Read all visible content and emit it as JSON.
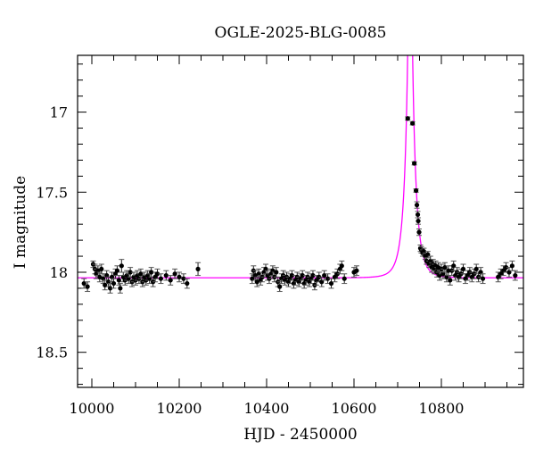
{
  "chart_data": {
    "type": "scatter",
    "title": "OGLE-2025-BLG-0085",
    "xlabel": "HJD - 2450000",
    "ylabel": "I magnitude",
    "xlim": [
      9967,
      10988
    ],
    "ylim": [
      18.72,
      16.647
    ],
    "y_inverted": true,
    "x_ticks": [
      10000,
      10200,
      10400,
      10600,
      10800
    ],
    "x_tick_labels": [
      "10000",
      "10200",
      "10400",
      "10600",
      "10800"
    ],
    "y_ticks": [
      17,
      17.5,
      18,
      18.5
    ],
    "y_tick_labels": [
      "17",
      "17.5",
      "18",
      "18.5"
    ],
    "grid": false,
    "colors": {
      "points": "#000000",
      "errorbars": "#555555",
      "model": "#ff00ff"
    },
    "series": [
      {
        "marker": "filled-circle-with-errorbars",
        "points": [
          [
            9982,
            18.07,
            0.03
          ],
          [
            9990,
            18.09,
            0.03
          ],
          [
            10003,
            17.95,
            0.02
          ],
          [
            10007,
            17.98,
            0.03
          ],
          [
            10010,
            18.01,
            0.03
          ],
          [
            10014,
            17.99,
            0.03
          ],
          [
            10018,
            18.03,
            0.03
          ],
          [
            10022,
            17.98,
            0.03
          ],
          [
            10026,
            18.04,
            0.03
          ],
          [
            10030,
            18.08,
            0.03
          ],
          [
            10034,
            18.02,
            0.03
          ],
          [
            10038,
            18.06,
            0.03
          ],
          [
            10042,
            18.1,
            0.03
          ],
          [
            10046,
            18.03,
            0.03
          ],
          [
            10050,
            18.07,
            0.03
          ],
          [
            10054,
            18.01,
            0.03
          ],
          [
            10058,
            17.99,
            0.03
          ],
          [
            10062,
            18.05,
            0.03
          ],
          [
            10065,
            18.1,
            0.03
          ],
          [
            10068,
            17.96,
            0.04
          ],
          [
            10072,
            18.03,
            0.03
          ],
          [
            10076,
            18.05,
            0.03
          ],
          [
            10080,
            18.02,
            0.03
          ],
          [
            10084,
            18.04,
            0.03
          ],
          [
            10088,
            18.0,
            0.03
          ],
          [
            10092,
            18.06,
            0.03
          ],
          [
            10096,
            18.03,
            0.03
          ],
          [
            10100,
            18.05,
            0.03
          ],
          [
            10104,
            18.02,
            0.03
          ],
          [
            10108,
            18.04,
            0.03
          ],
          [
            10112,
            18.01,
            0.03
          ],
          [
            10116,
            18.06,
            0.03
          ],
          [
            10120,
            18.03,
            0.03
          ],
          [
            10124,
            18.05,
            0.03
          ],
          [
            10128,
            18.02,
            0.03
          ],
          [
            10132,
            18.04,
            0.03
          ],
          [
            10136,
            18.0,
            0.03
          ],
          [
            10140,
            18.06,
            0.03
          ],
          [
            10145,
            18.03,
            0.03
          ],
          [
            10150,
            18.01,
            0.03
          ],
          [
            10158,
            18.04,
            0.03
          ],
          [
            10170,
            18.02,
            0.03
          ],
          [
            10180,
            18.05,
            0.03
          ],
          [
            10190,
            18.01,
            0.03
          ],
          [
            10200,
            18.03,
            0.03
          ],
          [
            10210,
            18.04,
            0.03
          ],
          [
            10218,
            18.07,
            0.03
          ],
          [
            10243,
            17.98,
            0.04
          ],
          [
            10367,
            18.04,
            0.03
          ],
          [
            10370,
            17.99,
            0.03
          ],
          [
            10374,
            18.02,
            0.03
          ],
          [
            10378,
            18.06,
            0.03
          ],
          [
            10382,
            18.01,
            0.03
          ],
          [
            10386,
            18.05,
            0.03
          ],
          [
            10390,
            18.03,
            0.03
          ],
          [
            10394,
            18.0,
            0.03
          ],
          [
            10398,
            17.98,
            0.03
          ],
          [
            10402,
            18.02,
            0.03
          ],
          [
            10406,
            18.04,
            0.03
          ],
          [
            10410,
            18.01,
            0.03
          ],
          [
            10414,
            17.99,
            0.03
          ],
          [
            10418,
            18.03,
            0.03
          ],
          [
            10422,
            18.0,
            0.03
          ],
          [
            10426,
            18.06,
            0.03
          ],
          [
            10430,
            18.09,
            0.03
          ],
          [
            10434,
            18.04,
            0.03
          ],
          [
            10438,
            18.02,
            0.03
          ],
          [
            10442,
            18.05,
            0.03
          ],
          [
            10446,
            18.03,
            0.03
          ],
          [
            10450,
            18.06,
            0.03
          ],
          [
            10454,
            18.04,
            0.03
          ],
          [
            10458,
            18.02,
            0.03
          ],
          [
            10462,
            18.07,
            0.03
          ],
          [
            10466,
            18.05,
            0.03
          ],
          [
            10470,
            18.03,
            0.03
          ],
          [
            10474,
            18.06,
            0.03
          ],
          [
            10478,
            18.04,
            0.03
          ],
          [
            10482,
            18.02,
            0.03
          ],
          [
            10486,
            18.07,
            0.03
          ],
          [
            10490,
            18.05,
            0.03
          ],
          [
            10494,
            18.03,
            0.03
          ],
          [
            10498,
            18.06,
            0.03
          ],
          [
            10502,
            18.04,
            0.03
          ],
          [
            10506,
            18.02,
            0.03
          ],
          [
            10510,
            18.08,
            0.03
          ],
          [
            10514,
            18.05,
            0.03
          ],
          [
            10520,
            18.03,
            0.03
          ],
          [
            10526,
            18.06,
            0.03
          ],
          [
            10532,
            18.02,
            0.03
          ],
          [
            10540,
            18.04,
            0.03
          ],
          [
            10548,
            18.07,
            0.03
          ],
          [
            10556,
            18.03,
            0.03
          ],
          [
            10562,
            18.01,
            0.03
          ],
          [
            10568,
            17.98,
            0.03
          ],
          [
            10572,
            17.96,
            0.03
          ],
          [
            10578,
            18.04,
            0.03
          ],
          [
            10600,
            18.0,
            0.03
          ],
          [
            10606,
            17.99,
            0.03
          ],
          [
            10723,
            17.04,
            0.01
          ],
          [
            10734,
            17.07,
            0.01
          ],
          [
            10738,
            17.32,
            0.01
          ],
          [
            10742,
            17.49,
            0.01
          ],
          [
            10744,
            17.58,
            0.02
          ],
          [
            10746,
            17.64,
            0.02
          ],
          [
            10747,
            17.68,
            0.02
          ],
          [
            10749,
            17.75,
            0.02
          ],
          [
            10752,
            17.85,
            0.02
          ],
          [
            10754,
            17.86,
            0.02
          ],
          [
            10757,
            17.88,
            0.02
          ],
          [
            10760,
            17.87,
            0.02
          ],
          [
            10763,
            17.9,
            0.02
          ],
          [
            10766,
            17.93,
            0.02
          ],
          [
            10769,
            17.89,
            0.02
          ],
          [
            10772,
            17.95,
            0.02
          ],
          [
            10775,
            17.93,
            0.03
          ],
          [
            10778,
            17.97,
            0.03
          ],
          [
            10781,
            17.95,
            0.03
          ],
          [
            10784,
            17.98,
            0.03
          ],
          [
            10787,
            17.96,
            0.03
          ],
          [
            10790,
            18.0,
            0.03
          ],
          [
            10793,
            17.97,
            0.03
          ],
          [
            10796,
            18.02,
            0.03
          ],
          [
            10800,
            17.98,
            0.03
          ],
          [
            10804,
            18.01,
            0.03
          ],
          [
            10808,
            17.97,
            0.03
          ],
          [
            10812,
            18.03,
            0.03
          ],
          [
            10816,
            17.99,
            0.03
          ],
          [
            10820,
            18.05,
            0.03
          ],
          [
            10824,
            17.99,
            0.03
          ],
          [
            10828,
            17.96,
            0.03
          ],
          [
            10832,
            18.02,
            0.03
          ],
          [
            10836,
            18.0,
            0.03
          ],
          [
            10840,
            18.03,
            0.03
          ],
          [
            10845,
            18.01,
            0.03
          ],
          [
            10850,
            17.98,
            0.03
          ],
          [
            10855,
            18.04,
            0.03
          ],
          [
            10860,
            18.02,
            0.03
          ],
          [
            10865,
            18.0,
            0.03
          ],
          [
            10870,
            18.03,
            0.03
          ],
          [
            10875,
            18.01,
            0.03
          ],
          [
            10880,
            17.98,
            0.03
          ],
          [
            10885,
            18.03,
            0.03
          ],
          [
            10890,
            18.0,
            0.03
          ],
          [
            10895,
            18.04,
            0.03
          ],
          [
            10930,
            18.03,
            0.03
          ],
          [
            10936,
            18.01,
            0.03
          ],
          [
            10942,
            17.99,
            0.03
          ],
          [
            10948,
            17.97,
            0.03
          ],
          [
            10955,
            18.0,
            0.03
          ],
          [
            10962,
            17.96,
            0.03
          ],
          [
            10969,
            18.02,
            0.03
          ]
        ]
      }
    ],
    "model": {
      "type": "point-lens light curve",
      "baseline_mag": 18.035,
      "t0": 10728.5,
      "tE": 20,
      "u0": 0.02
    }
  }
}
